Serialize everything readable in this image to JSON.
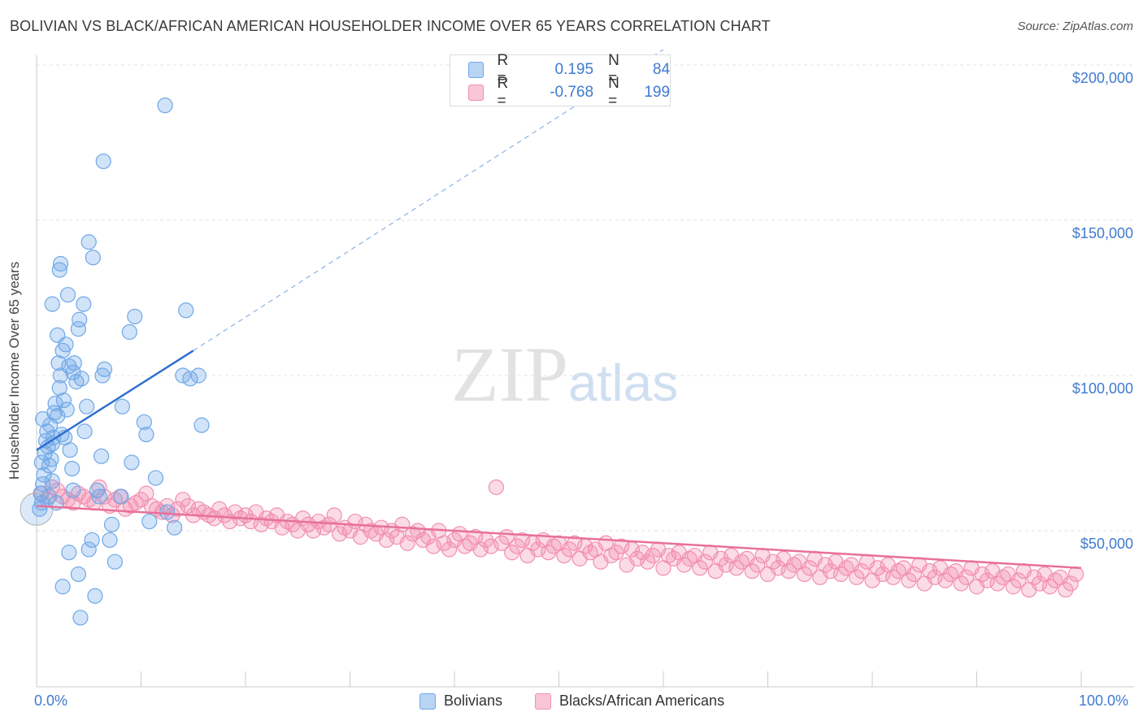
{
  "title": "BOLIVIAN VS BLACK/AFRICAN AMERICAN HOUSEHOLDER INCOME OVER 65 YEARS CORRELATION CHART",
  "source": "Source: ZipAtlas.com",
  "watermark": {
    "zip": "ZIP",
    "atlas": "atlas"
  },
  "legend": {
    "rows": [
      {
        "r_label": "R =",
        "r_value": "0.195",
        "n_label": "N =",
        "n_value": "84"
      },
      {
        "r_label": "R =",
        "r_value": "-0.768",
        "n_label": "N =",
        "n_value": "199"
      }
    ]
  },
  "colors": {
    "blue": "#6fa8e8",
    "blue_line": "#2f6fce",
    "pink": "#f28fb0",
    "pink_line": "#e8709a",
    "tick_text": "#3f7bd0"
  },
  "chart_data": {
    "type": "scatter",
    "title": "BOLIVIAN VS BLACK/AFRICAN AMERICAN HOUSEHOLDER INCOME OVER 65 YEARS CORRELATION CHART",
    "xlabel": "",
    "ylabel": "Householder Income Over 65 years",
    "xlim": [
      0,
      100
    ],
    "ylim": [
      0,
      205000
    ],
    "x_tick_labels": [
      "0.0%",
      "100.0%"
    ],
    "y_ticks": [
      50000,
      100000,
      150000,
      200000
    ],
    "y_tick_labels": [
      "$50,000",
      "$100,000",
      "$150,000",
      "$200,000"
    ],
    "grid": true,
    "legend_position": "top-center",
    "series": [
      {
        "name": "Bolivians",
        "R": 0.195,
        "N": 84,
        "trend": {
          "x": [
            0,
            15
          ],
          "y": [
            76000,
            108000
          ],
          "extended_to": [
            60,
            205000
          ]
        },
        "points": [
          [
            0.3,
            57000
          ],
          [
            0.4,
            62000
          ],
          [
            0.5,
            59000
          ],
          [
            0.6,
            65000
          ],
          [
            0.7,
            68000
          ],
          [
            0.5,
            72000
          ],
          [
            0.8,
            75000
          ],
          [
            0.9,
            79000
          ],
          [
            1.0,
            82000
          ],
          [
            0.6,
            86000
          ],
          [
            1.1,
            77000
          ],
          [
            1.2,
            71000
          ],
          [
            1.4,
            73000
          ],
          [
            1.5,
            78000
          ],
          [
            1.6,
            80000
          ],
          [
            1.3,
            84000
          ],
          [
            1.7,
            88000
          ],
          [
            1.8,
            91000
          ],
          [
            2.0,
            87000
          ],
          [
            2.2,
            96000
          ],
          [
            2.3,
            100000
          ],
          [
            2.1,
            104000
          ],
          [
            2.5,
            108000
          ],
          [
            2.8,
            110000
          ],
          [
            2.0,
            113000
          ],
          [
            1.5,
            123000
          ],
          [
            2.2,
            134000
          ],
          [
            2.3,
            136000
          ],
          [
            3.0,
            126000
          ],
          [
            3.1,
            103000
          ],
          [
            2.9,
            89000
          ],
          [
            2.6,
            92000
          ],
          [
            2.7,
            80000
          ],
          [
            2.4,
            81000
          ],
          [
            3.2,
            76000
          ],
          [
            3.4,
            70000
          ],
          [
            3.5,
            101000
          ],
          [
            3.6,
            104000
          ],
          [
            3.8,
            98000
          ],
          [
            4.0,
            115000
          ],
          [
            4.1,
            118000
          ],
          [
            4.3,
            99000
          ],
          [
            4.5,
            123000
          ],
          [
            5.0,
            143000
          ],
          [
            5.4,
            138000
          ],
          [
            4.8,
            90000
          ],
          [
            4.6,
            82000
          ],
          [
            5.8,
            63000
          ],
          [
            6.0,
            61000
          ],
          [
            6.5,
            102000
          ],
          [
            7.0,
            47000
          ],
          [
            7.2,
            52000
          ],
          [
            7.5,
            40000
          ],
          [
            6.3,
            100000
          ],
          [
            8.2,
            90000
          ],
          [
            8.9,
            114000
          ],
          [
            9.4,
            119000
          ],
          [
            9.1,
            72000
          ],
          [
            10.3,
            85000
          ],
          [
            10.5,
            81000
          ],
          [
            11.4,
            67000
          ],
          [
            12.5,
            56000
          ],
          [
            13.2,
            51000
          ],
          [
            14.0,
            100000
          ],
          [
            14.3,
            121000
          ],
          [
            14.7,
            99000
          ],
          [
            15.5,
            100000
          ],
          [
            15.8,
            84000
          ],
          [
            3.1,
            43000
          ],
          [
            2.5,
            32000
          ],
          [
            5.6,
            29000
          ],
          [
            4.2,
            22000
          ],
          [
            4.0,
            36000
          ],
          [
            5.0,
            44000
          ],
          [
            5.3,
            47000
          ],
          [
            6.2,
            74000
          ],
          [
            3.5,
            63000
          ],
          [
            1.5,
            66000
          ],
          [
            1.9,
            59000
          ],
          [
            1.2,
            61000
          ],
          [
            12.3,
            187000
          ],
          [
            6.4,
            169000
          ],
          [
            8.1,
            61000
          ],
          [
            10.8,
            53000
          ]
        ]
      },
      {
        "name": "Blacks/African Americans",
        "R": -0.768,
        "N": 199,
        "trend": {
          "x": [
            0,
            100
          ],
          "y": [
            58000,
            38000
          ]
        },
        "points": [
          [
            0.5,
            62000
          ],
          [
            1.0,
            60000
          ],
          [
            1.5,
            64000
          ],
          [
            2.0,
            63000
          ],
          [
            2.5,
            61000
          ],
          [
            3.0,
            60000
          ],
          [
            3.5,
            59000
          ],
          [
            4.0,
            62000
          ],
          [
            4.5,
            61000
          ],
          [
            5.0,
            60000
          ],
          [
            5.5,
            59000
          ],
          [
            6.0,
            64000
          ],
          [
            6.5,
            61000
          ],
          [
            7.0,
            58000
          ],
          [
            7.5,
            60000
          ],
          [
            8.0,
            61000
          ],
          [
            8.5,
            57000
          ],
          [
            9.0,
            58000
          ],
          [
            9.5,
            59000
          ],
          [
            10.0,
            60000
          ],
          [
            10.5,
            62000
          ],
          [
            11.0,
            58000
          ],
          [
            11.5,
            57000
          ],
          [
            12.0,
            56000
          ],
          [
            12.5,
            58000
          ],
          [
            13.0,
            55000
          ],
          [
            13.5,
            57000
          ],
          [
            14.0,
            60000
          ],
          [
            14.5,
            58000
          ],
          [
            15.0,
            55000
          ],
          [
            15.5,
            57000
          ],
          [
            16.0,
            56000
          ],
          [
            16.5,
            55000
          ],
          [
            17.0,
            54000
          ],
          [
            17.5,
            57000
          ],
          [
            18.0,
            55000
          ],
          [
            18.5,
            53000
          ],
          [
            19.0,
            56000
          ],
          [
            19.5,
            54000
          ],
          [
            20.0,
            55000
          ],
          [
            20.5,
            53000
          ],
          [
            21.0,
            56000
          ],
          [
            21.5,
            52000
          ],
          [
            22.0,
            54000
          ],
          [
            22.5,
            53000
          ],
          [
            23.0,
            55000
          ],
          [
            23.5,
            51000
          ],
          [
            24.0,
            53000
          ],
          [
            24.5,
            52000
          ],
          [
            25.0,
            50000
          ],
          [
            25.5,
            54000
          ],
          [
            26.0,
            52000
          ],
          [
            26.5,
            50000
          ],
          [
            27.0,
            53000
          ],
          [
            27.5,
            51000
          ],
          [
            28.0,
            52000
          ],
          [
            28.5,
            55000
          ],
          [
            29.0,
            49000
          ],
          [
            29.5,
            51000
          ],
          [
            30.0,
            50000
          ],
          [
            30.5,
            53000
          ],
          [
            31.0,
            48000
          ],
          [
            31.5,
            52000
          ],
          [
            32.0,
            50000
          ],
          [
            32.5,
            49000
          ],
          [
            33.0,
            51000
          ],
          [
            33.5,
            47000
          ],
          [
            34.0,
            50000
          ],
          [
            34.5,
            48000
          ],
          [
            35.0,
            52000
          ],
          [
            35.5,
            46000
          ],
          [
            36.0,
            49000
          ],
          [
            36.5,
            50000
          ],
          [
            37.0,
            47000
          ],
          [
            37.5,
            48000
          ],
          [
            38.0,
            45000
          ],
          [
            38.5,
            50000
          ],
          [
            39.0,
            46000
          ],
          [
            39.5,
            44000
          ],
          [
            40.0,
            47000
          ],
          [
            40.5,
            49000
          ],
          [
            41.0,
            45000
          ],
          [
            41.5,
            46000
          ],
          [
            42.0,
            48000
          ],
          [
            42.5,
            44000
          ],
          [
            43.0,
            47000
          ],
          [
            43.5,
            45000
          ],
          [
            44.0,
            64000
          ],
          [
            44.5,
            46000
          ],
          [
            45.0,
            48000
          ],
          [
            45.5,
            43000
          ],
          [
            46.0,
            45000
          ],
          [
            46.5,
            47000
          ],
          [
            47.0,
            42000
          ],
          [
            47.5,
            46000
          ],
          [
            48.0,
            44000
          ],
          [
            48.5,
            47000
          ],
          [
            49.0,
            43000
          ],
          [
            49.5,
            45000
          ],
          [
            50.0,
            46000
          ],
          [
            50.5,
            42000
          ],
          [
            51.0,
            44000
          ],
          [
            51.5,
            46000
          ],
          [
            52.0,
            41000
          ],
          [
            52.5,
            45000
          ],
          [
            53.0,
            43000
          ],
          [
            53.5,
            44000
          ],
          [
            54.0,
            40000
          ],
          [
            54.5,
            46000
          ],
          [
            55.0,
            42000
          ],
          [
            55.5,
            43000
          ],
          [
            56.0,
            45000
          ],
          [
            56.5,
            39000
          ],
          [
            57.0,
            44000
          ],
          [
            57.5,
            41000
          ],
          [
            58.0,
            43000
          ],
          [
            58.5,
            40000
          ],
          [
            59.0,
            42000
          ],
          [
            59.5,
            44000
          ],
          [
            60.0,
            38000
          ],
          [
            60.5,
            42000
          ],
          [
            61.0,
            41000
          ],
          [
            61.5,
            43000
          ],
          [
            62.0,
            39000
          ],
          [
            62.5,
            41000
          ],
          [
            63.0,
            42000
          ],
          [
            63.5,
            38000
          ],
          [
            64.0,
            40000
          ],
          [
            64.5,
            43000
          ],
          [
            65.0,
            37000
          ],
          [
            65.5,
            41000
          ],
          [
            66.0,
            39000
          ],
          [
            66.5,
            42000
          ],
          [
            67.0,
            38000
          ],
          [
            67.5,
            40000
          ],
          [
            68.0,
            41000
          ],
          [
            68.5,
            37000
          ],
          [
            69.0,
            39000
          ],
          [
            69.5,
            42000
          ],
          [
            70.0,
            36000
          ],
          [
            70.5,
            40000
          ],
          [
            71.0,
            38000
          ],
          [
            71.5,
            41000
          ],
          [
            72.0,
            37000
          ],
          [
            72.5,
            39000
          ],
          [
            73.0,
            40000
          ],
          [
            73.5,
            36000
          ],
          [
            74.0,
            38000
          ],
          [
            74.5,
            41000
          ],
          [
            75.0,
            35000
          ],
          [
            75.5,
            39000
          ],
          [
            76.0,
            37000
          ],
          [
            76.5,
            40000
          ],
          [
            77.0,
            36000
          ],
          [
            77.5,
            38000
          ],
          [
            78.0,
            39000
          ],
          [
            78.5,
            35000
          ],
          [
            79.0,
            37000
          ],
          [
            79.5,
            40000
          ],
          [
            80.0,
            34000
          ],
          [
            80.5,
            38000
          ],
          [
            81.0,
            36000
          ],
          [
            81.5,
            39000
          ],
          [
            82.0,
            35000
          ],
          [
            82.5,
            37000
          ],
          [
            83.0,
            38000
          ],
          [
            83.5,
            34000
          ],
          [
            84.0,
            36000
          ],
          [
            84.5,
            39000
          ],
          [
            85.0,
            33000
          ],
          [
            85.5,
            37000
          ],
          [
            86.0,
            35000
          ],
          [
            86.5,
            38000
          ],
          [
            87.0,
            34000
          ],
          [
            87.5,
            36000
          ],
          [
            88.0,
            37000
          ],
          [
            88.5,
            33000
          ],
          [
            89.0,
            35000
          ],
          [
            89.5,
            38000
          ],
          [
            90.0,
            32000
          ],
          [
            90.5,
            36000
          ],
          [
            91.0,
            34000
          ],
          [
            91.5,
            37000
          ],
          [
            92.0,
            33000
          ],
          [
            92.5,
            35000
          ],
          [
            93.0,
            36000
          ],
          [
            93.5,
            32000
          ],
          [
            94.0,
            34000
          ],
          [
            94.5,
            37000
          ],
          [
            95.0,
            31000
          ],
          [
            95.5,
            35000
          ],
          [
            96.0,
            33000
          ],
          [
            96.5,
            36000
          ],
          [
            97.0,
            32000
          ],
          [
            97.5,
            34000
          ],
          [
            98.0,
            35000
          ],
          [
            98.5,
            31000
          ],
          [
            99.0,
            33000
          ],
          [
            99.5,
            36000
          ]
        ]
      }
    ]
  },
  "xaxis": {
    "left_label": "0.0%",
    "right_label": "100.0%"
  }
}
